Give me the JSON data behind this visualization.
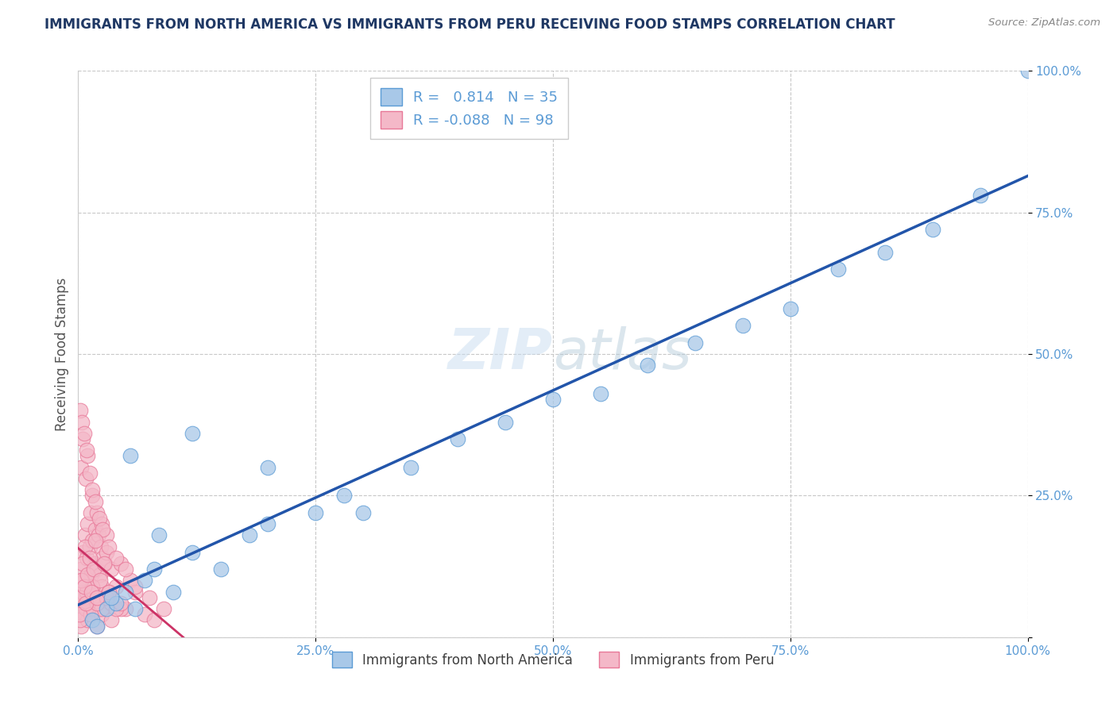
{
  "title": "IMMIGRANTS FROM NORTH AMERICA VS IMMIGRANTS FROM PERU RECEIVING FOOD STAMPS CORRELATION CHART",
  "source": "Source: ZipAtlas.com",
  "ylabel": "Receiving Food Stamps",
  "xlim": [
    0,
    100
  ],
  "ylim": [
    0,
    100
  ],
  "xticks": [
    0,
    25,
    50,
    75,
    100
  ],
  "yticks": [
    0,
    25,
    50,
    75,
    100
  ],
  "xticklabels": [
    "0.0%",
    "25.0%",
    "50.0%",
    "75.0%",
    "100.0%"
  ],
  "yticklabels": [
    "0.0%",
    "25.0%",
    "50.0%",
    "75.0%",
    "100.0%"
  ],
  "legend_entries": [
    {
      "label": "Immigrants from North America",
      "r": "0.814",
      "n": "35"
    },
    {
      "label": "Immigrants from Peru",
      "r": "-0.088",
      "n": "98"
    }
  ],
  "blue_scatter_color": "#a8c8e8",
  "blue_edge_color": "#5b9bd5",
  "pink_scatter_color": "#f4b8c8",
  "pink_edge_color": "#e87898",
  "trendline_blue_color": "#2255aa",
  "trendline_pink_color": "#cc3366",
  "background_color": "#ffffff",
  "grid_color": "#c8c8c8",
  "title_color": "#1f3864",
  "axis_label_color": "#555555",
  "tick_label_color": "#5b9bd5",
  "source_color": "#888888",
  "watermark_color": "#c8ddf0",
  "blue_scatter_x": [
    1.5,
    2.0,
    3.0,
    4.0,
    5.0,
    6.0,
    7.0,
    8.0,
    10.0,
    12.0,
    15.0,
    18.0,
    20.0,
    25.0,
    28.0,
    30.0,
    35.0,
    40.0,
    45.0,
    50.0,
    55.0,
    60.0,
    65.0,
    70.0,
    75.0,
    80.0,
    85.0,
    90.0,
    95.0,
    100.0,
    3.5,
    5.5,
    8.5,
    12.0,
    20.0
  ],
  "blue_scatter_y": [
    3.0,
    2.0,
    5.0,
    6.0,
    8.0,
    5.0,
    10.0,
    12.0,
    8.0,
    15.0,
    12.0,
    18.0,
    20.0,
    22.0,
    25.0,
    22.0,
    30.0,
    35.0,
    38.0,
    42.0,
    43.0,
    48.0,
    52.0,
    55.0,
    58.0,
    65.0,
    68.0,
    72.0,
    78.0,
    100.0,
    7.0,
    32.0,
    18.0,
    36.0,
    30.0
  ],
  "pink_scatter_x": [
    0.2,
    0.3,
    0.4,
    0.5,
    0.6,
    0.7,
    0.8,
    0.9,
    1.0,
    1.1,
    1.2,
    1.3,
    1.4,
    1.5,
    1.6,
    1.7,
    1.8,
    1.9,
    2.0,
    2.1,
    2.2,
    2.3,
    2.4,
    2.5,
    2.6,
    2.8,
    3.0,
    3.2,
    3.5,
    4.0,
    4.5,
    5.0,
    5.5,
    6.0,
    7.0,
    8.0,
    0.3,
    0.5,
    0.8,
    1.0,
    1.5,
    2.0,
    2.5,
    3.0,
    0.2,
    0.4,
    0.6,
    0.9,
    1.2,
    1.5,
    1.8,
    2.2,
    2.6,
    3.2,
    4.0,
    5.0,
    0.3,
    0.7,
    1.0,
    1.5,
    2.0,
    2.5,
    3.5,
    4.5,
    0.5,
    1.0,
    1.5,
    2.5,
    3.5,
    0.2,
    0.8,
    1.3,
    2.0,
    3.0,
    4.0,
    0.4,
    0.9,
    1.5,
    0.1,
    0.2,
    0.3,
    0.5,
    0.6,
    0.7,
    0.8,
    1.0,
    1.2,
    1.4,
    1.6,
    1.8,
    2.0,
    2.3,
    2.7,
    3.2,
    4.5,
    6.0,
    7.5,
    9.0
  ],
  "pink_scatter_y": [
    8.0,
    12.0,
    6.0,
    15.0,
    10.0,
    18.0,
    7.0,
    14.0,
    20.0,
    9.0,
    16.0,
    22.0,
    11.0,
    17.0,
    8.0,
    13.0,
    19.0,
    6.0,
    12.0,
    18.0,
    5.0,
    11.0,
    16.0,
    9.0,
    14.0,
    13.0,
    15.0,
    8.0,
    12.0,
    9.0,
    13.0,
    5.0,
    10.0,
    8.0,
    4.0,
    3.0,
    30.0,
    35.0,
    28.0,
    32.0,
    25.0,
    22.0,
    20.0,
    18.0,
    40.0,
    38.0,
    36.0,
    33.0,
    29.0,
    26.0,
    24.0,
    21.0,
    19.0,
    16.0,
    14.0,
    12.0,
    2.0,
    4.0,
    3.0,
    5.0,
    2.0,
    4.0,
    3.0,
    5.0,
    8.0,
    6.0,
    7.0,
    5.0,
    6.0,
    3.0,
    5.0,
    4.0,
    6.0,
    7.0,
    5.0,
    10.0,
    8.0,
    9.0,
    4.0,
    7.0,
    10.0,
    13.0,
    9.0,
    16.0,
    6.0,
    11.0,
    14.0,
    8.0,
    12.0,
    17.0,
    7.0,
    10.0,
    13.0,
    8.0,
    6.0,
    9.0,
    7.0,
    5.0
  ]
}
